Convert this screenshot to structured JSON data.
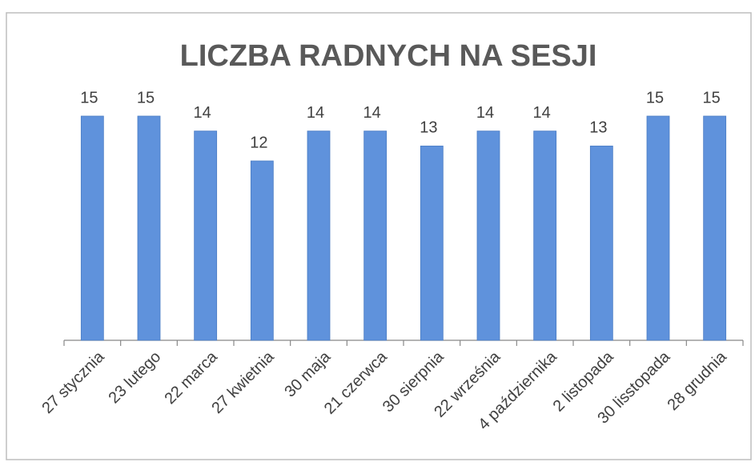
{
  "chart_data": {
    "type": "bar",
    "title": "LICZBA RADNYCH NA SESJI",
    "categories": [
      "27 stycznia",
      "23 lutego",
      "22 marca",
      "27 kwietnia",
      "30 maja",
      "21 czerwca",
      "30 sierpnia",
      "22 września",
      "4 października",
      "2 listopada",
      "30 lisstopada",
      "28 grudnia"
    ],
    "values": [
      15,
      15,
      14,
      12,
      14,
      14,
      13,
      14,
      14,
      13,
      15,
      15
    ],
    "color": "#5f92dc",
    "ylim": [
      0,
      15
    ]
  }
}
